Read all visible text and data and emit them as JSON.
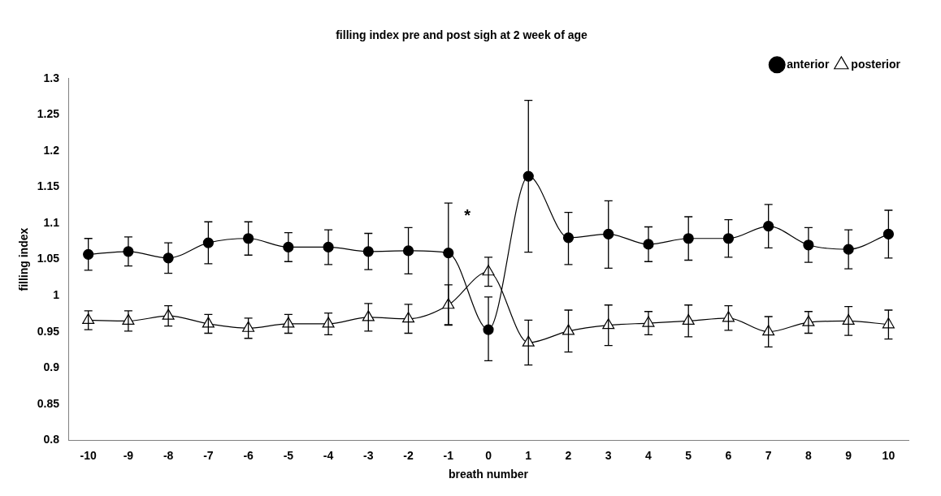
{
  "chart_data": {
    "type": "line",
    "title": "filling index pre and post sigh at 2 week of age",
    "xlabel": "breath number",
    "ylabel": "filling index",
    "categories": [
      "-10",
      "-9",
      "-8",
      "-7",
      "-6",
      "-5",
      "-4",
      "-3",
      "-2",
      "-1",
      "0",
      "1",
      "2",
      "3",
      "4",
      "5",
      "6",
      "7",
      "8",
      "9",
      "10"
    ],
    "series": [
      {
        "name": "anterior",
        "color": "#000000",
        "marker": "circle",
        "values": [
          1.057,
          1.061,
          1.052,
          1.073,
          1.079,
          1.067,
          1.067,
          1.061,
          1.062,
          1.059,
          0.953,
          1.165,
          1.08,
          1.085,
          1.071,
          1.079,
          1.079,
          1.096,
          1.07,
          1.064,
          1.085
        ],
        "errors": [
          0.022,
          0.02,
          0.021,
          0.029,
          0.023,
          0.02,
          0.024,
          0.025,
          0.032,
          [
            0.96,
            1.128
          ],
          [
            0.91,
            0.998
          ],
          [
            1.06,
            1.27
          ],
          [
            1.043,
            1.115
          ],
          [
            1.038,
            1.131
          ],
          0.024,
          0.03,
          0.026,
          0.03,
          0.024,
          0.027,
          0.033
        ]
      },
      {
        "name": "posterior",
        "color": "#000000",
        "marker": "triangle",
        "values": [
          0.966,
          0.965,
          0.972,
          0.961,
          0.955,
          0.961,
          0.961,
          0.97,
          0.968,
          0.987,
          1.033,
          0.935,
          0.951,
          0.959,
          0.962,
          0.965,
          0.969,
          0.95,
          0.963,
          0.965,
          0.96
        ],
        "errors": [
          0.013,
          0.014,
          0.014,
          0.013,
          0.014,
          0.013,
          0.015,
          0.019,
          0.02,
          0.028,
          0.02,
          0.031,
          0.029,
          0.028,
          0.016,
          0.022,
          0.017,
          0.021,
          0.015,
          0.02,
          0.02
        ]
      }
    ],
    "ylim": [
      0.8,
      1.3
    ],
    "yticks": [
      0.8,
      0.85,
      0.9,
      0.95,
      1,
      1.05,
      1.1,
      1.15,
      1.2,
      1.25,
      1.3
    ],
    "annotations": [
      "*"
    ],
    "grid": false,
    "legend": "top right",
    "line_style": "solid"
  }
}
